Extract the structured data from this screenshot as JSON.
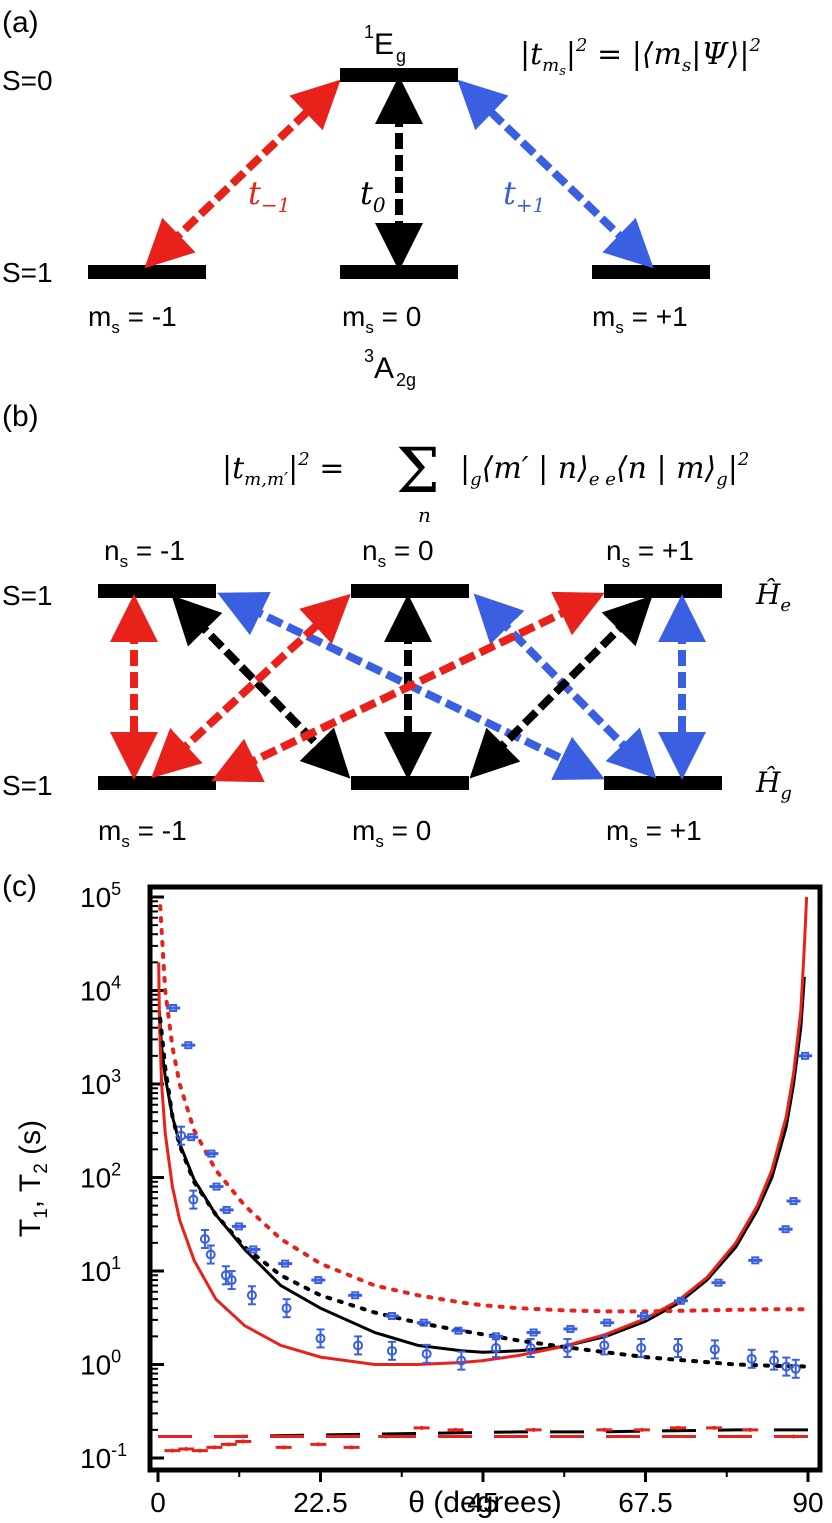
{
  "panel_a": {
    "panel_label": "(a)",
    "singlet_label": "S=0",
    "triplet_label": "S=1",
    "excited_state_sup": "1",
    "excited_state_main": "E",
    "excited_state_sub": "g",
    "ground_state_sup": "3",
    "ground_state_main": "A",
    "ground_state_sub": "2g",
    "equation": "|t_{m_s}|^2 = |⟨m_s|Ψ⟩|^2",
    "levels": [
      {
        "label": "m",
        "sub": "s",
        "value": " = -1"
      },
      {
        "label": "m",
        "sub": "s",
        "value": " = 0"
      },
      {
        "label": "m",
        "sub": "s",
        "value": " = +1"
      }
    ],
    "transitions": [
      {
        "symbol": "t",
        "sub": "−1",
        "color": "#e8221b"
      },
      {
        "symbol": "t",
        "sub": "0",
        "color": "#000000"
      },
      {
        "symbol": "t",
        "sub": "+1",
        "color": "#3a5fe0"
      }
    ]
  },
  "panel_b": {
    "panel_label": "(b)",
    "upper_label": "S=1",
    "lower_label": "S=1",
    "equation": "|t_{m,m'}|^2 = Σ_n |_g⟨m' | n⟩_e _e⟨n | m⟩_g|^2",
    "upper_levels": [
      {
        "label": "n",
        "sub": "s",
        "value": " = -1"
      },
      {
        "label": "n",
        "sub": "s",
        "value": " = 0"
      },
      {
        "label": "n",
        "sub": "s",
        "value": " = +1"
      }
    ],
    "lower_levels": [
      {
        "label": "m",
        "sub": "s",
        "value": " = -1"
      },
      {
        "label": "m",
        "sub": "s",
        "value": " = 0"
      },
      {
        "label": "m",
        "sub": "s",
        "value": " = +1"
      }
    ],
    "hamiltonian_upper": "Ĥ_e",
    "hamiltonian_lower": "Ĥ_g"
  },
  "chart_data": {
    "type": "scatter",
    "panel_label": "(c)",
    "xlabel": "θ (degrees)",
    "ylabel": "T_1, T_2 (s)",
    "xlim": [
      0,
      90
    ],
    "ylim": [
      0.1,
      100000
    ],
    "yscale": "log",
    "x_ticks": [
      "0",
      "22.5",
      "45",
      "67.5",
      "90"
    ],
    "y_ticks": [
      "10^5",
      "10^4",
      "10^3",
      "10^2",
      "10^1",
      "10^0",
      "10^-1"
    ],
    "colors": {
      "blue": "#3a5fe0",
      "red": "#e8221b",
      "black": "#000000"
    },
    "series": [
      {
        "style": "solid-black",
        "x": [
          0.2,
          0.5,
          1,
          2,
          3,
          5,
          8,
          12,
          17,
          22.5,
          30,
          36,
          42,
          45,
          50,
          56,
          62,
          67.5,
          72,
          76,
          80,
          83,
          85,
          87,
          88,
          89,
          89.5
        ],
        "y": [
          6000,
          2500,
          1200,
          450,
          230,
          95,
          40,
          17,
          7,
          4,
          2.2,
          1.6,
          1.4,
          1.35,
          1.4,
          1.55,
          2.0,
          2.9,
          4.5,
          8,
          18,
          45,
          100,
          350,
          1000,
          4000,
          14000
        ]
      },
      {
        "style": "solid-red",
        "x": [
          0.1,
          0.2,
          0.5,
          1,
          2,
          3,
          5,
          8,
          12,
          17,
          22.5,
          30,
          36,
          42,
          45,
          50,
          56,
          62,
          67.5,
          72,
          76,
          80,
          83,
          85,
          87,
          88,
          89,
          89.5,
          89.8
        ],
        "y": [
          20000,
          5000,
          1000,
          300,
          80,
          35,
          13,
          5,
          2.6,
          1.6,
          1.2,
          1.0,
          1.0,
          1.05,
          1.1,
          1.25,
          1.55,
          2.1,
          3.1,
          4.8,
          8.5,
          20,
          50,
          120,
          450,
          1300,
          6000,
          30000,
          100000
        ]
      },
      {
        "style": "dotted-black",
        "x": [
          0.3,
          1,
          2,
          3,
          5,
          8,
          12,
          17,
          22.5,
          30,
          36,
          42,
          45,
          50,
          56,
          62,
          67.5,
          72,
          76,
          80,
          85,
          90
        ],
        "y": [
          5000,
          1500,
          450,
          220,
          90,
          40,
          18,
          9,
          5.5,
          3.6,
          2.8,
          2.3,
          2.1,
          1.8,
          1.55,
          1.35,
          1.2,
          1.12,
          1.06,
          1.0,
          0.97,
          0.95
        ]
      },
      {
        "style": "dotted-red",
        "x": [
          0.3,
          1,
          2,
          3,
          5,
          8,
          12,
          17,
          22.5,
          30,
          36,
          42,
          45,
          50,
          56,
          62,
          67.5,
          72,
          76,
          80,
          85,
          90
        ],
        "y": [
          80000,
          10000,
          2500,
          1000,
          320,
          120,
          50,
          22,
          12,
          7,
          5.5,
          4.6,
          4.3,
          4.0,
          3.8,
          3.7,
          3.7,
          3.75,
          3.8,
          3.85,
          3.9,
          3.9
        ]
      },
      {
        "style": "dashed-black",
        "x": [
          0,
          10,
          20,
          30,
          40,
          50,
          60,
          70,
          80,
          90
        ],
        "y": [
          0.17,
          0.17,
          0.175,
          0.18,
          0.185,
          0.19,
          0.19,
          0.195,
          0.2,
          0.2
        ]
      },
      {
        "style": "dashed-red",
        "x": [
          0,
          10,
          20,
          30,
          40,
          50,
          60,
          70,
          80,
          90
        ],
        "y": [
          0.17,
          0.17,
          0.17,
          0.17,
          0.17,
          0.17,
          0.17,
          0.17,
          0.17,
          0.17
        ]
      },
      {
        "style": "blue-square-markers",
        "name": "",
        "x": [
          2.1,
          4.2,
          4.6,
          7.4,
          8.1,
          9.5,
          11.2,
          13.2,
          17.6,
          22.2,
          27.3,
          32.4,
          36.8,
          41.6,
          46.8,
          52.0,
          57.1,
          62.2,
          67.3,
          72.4,
          77.6,
          82.7,
          86.9,
          88.0,
          89.6
        ],
        "y": [
          6500,
          2600,
          270,
          180,
          80,
          45,
          30,
          17,
          12,
          8,
          5.5,
          3.3,
          2.8,
          2.3,
          2.0,
          2.2,
          2.4,
          2.8,
          3.3,
          4.8,
          7.5,
          13,
          28,
          56,
          2000
        ]
      },
      {
        "style": "blue-circle-markers",
        "x": [
          3.2,
          4.9,
          6.5,
          7.3,
          9.4,
          10.2,
          13.0,
          17.8,
          22.5,
          27.7,
          32.4,
          37.2,
          42.0,
          46.8,
          51.6,
          56.7,
          61.8,
          66.9,
          72.0,
          77.1,
          82.2,
          85.3,
          87.0,
          88.3
        ],
        "y": [
          280,
          58,
          22,
          15,
          9,
          8,
          5.5,
          4,
          1.9,
          1.6,
          1.4,
          1.3,
          1.1,
          1.5,
          1.5,
          1.5,
          1.6,
          1.5,
          1.5,
          1.45,
          1.15,
          1.1,
          0.95,
          0.9
        ]
      },
      {
        "style": "red-bar-markers",
        "x": [
          2.0,
          3.9,
          5.8,
          7.8,
          9.8,
          11.8,
          17.4,
          22.2,
          26.8,
          31.6,
          36.5,
          41.2,
          52.0,
          61.8,
          67.0,
          72.0,
          77.0,
          82.0,
          88.0
        ],
        "y": [
          0.12,
          0.125,
          0.12,
          0.13,
          0.14,
          0.15,
          0.13,
          0.14,
          0.13,
          0.17,
          0.21,
          0.2,
          0.2,
          0.2,
          0.2,
          0.21,
          0.21,
          0.2,
          0.17
        ]
      }
    ]
  }
}
